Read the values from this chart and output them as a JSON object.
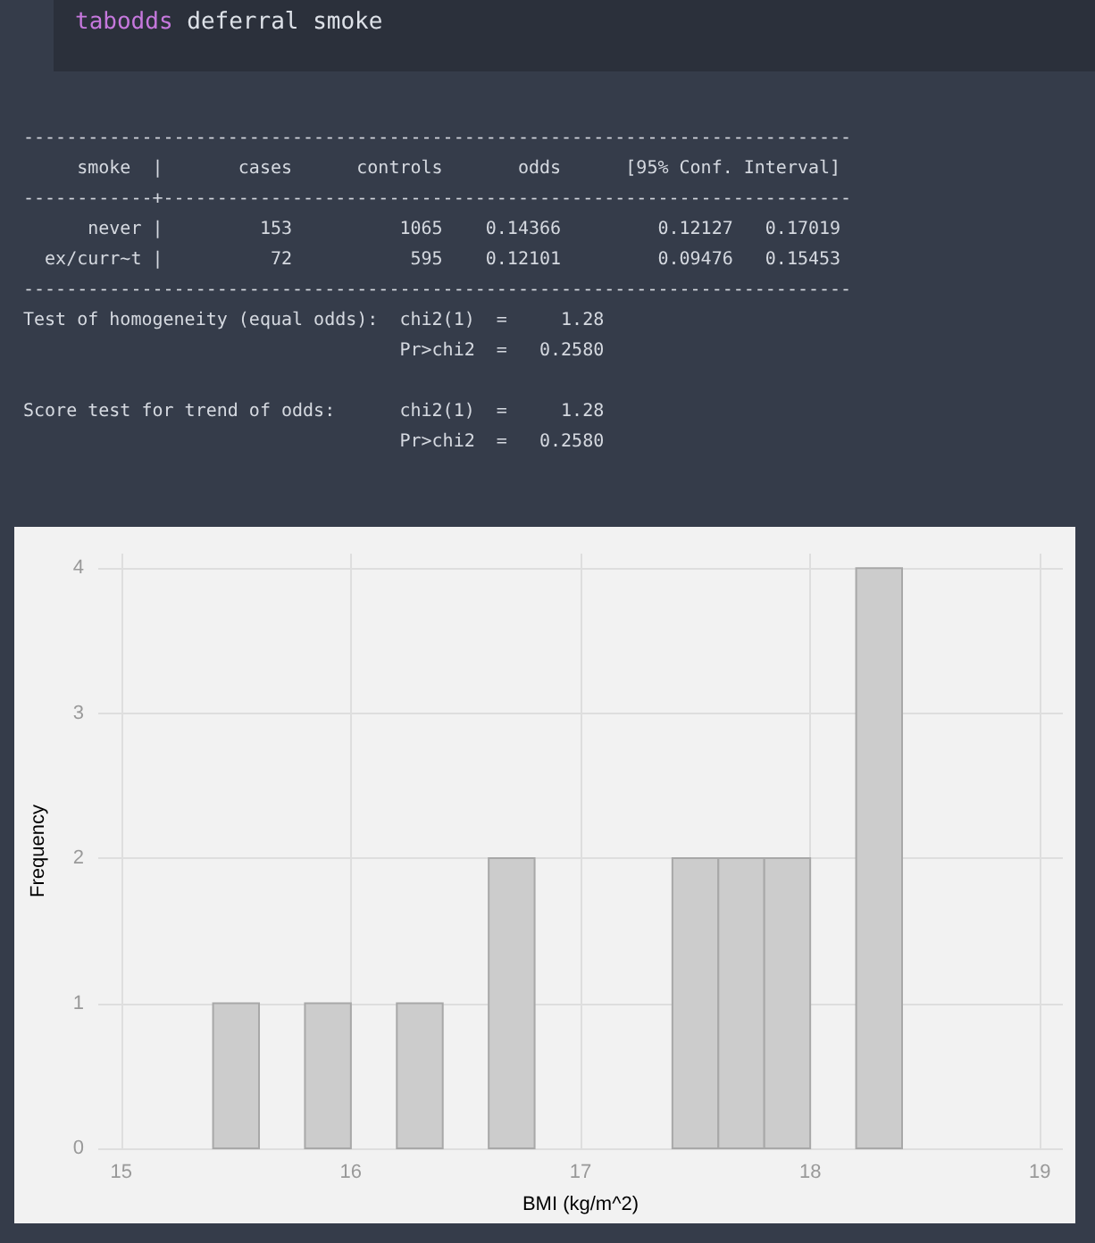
{
  "chart_data": [
    {
      "type": "other",
      "title": "tabodds deferral smoke",
      "annotations": [
        "-----------------------------------------------------------------------------\n     smoke  |       cases      controls       odds      [95% Conf. Interval]\n------------+----------------------------------------------------------------\n      never |         153          1065    0.14366         0.12127   0.17019\n  ex/curr~t |          72           595    0.12101         0.09476   0.15453\n-----------------------------------------------------------------------------\nTest of homogeneity (equal odds):  chi2(1)  =     1.28\n                                   Pr>chi2  =   0.2580",
        "Score test for trend of odds:      chi2(1)  =     1.28\n                                   Pr>chi2  =   0.2580"
      ]
    },
    {
      "type": "histogram",
      "xlabel": "BMI (kg/m^2)",
      "ylabel": "Frequency",
      "color": "#cccccc",
      "bins": [
        15.4,
        15.6,
        15.8,
        16.0,
        16.2,
        16.4,
        16.6,
        16.8,
        17.0,
        17.2,
        17.4,
        17.6,
        17.8,
        18.0,
        18.2,
        18.4
      ],
      "values": [
        1,
        0,
        1,
        0,
        1,
        0,
        2,
        0,
        0,
        0,
        2,
        2,
        2,
        0,
        4
      ],
      "xlim": [
        14.9,
        19.1
      ],
      "xticks": [
        15,
        16,
        17,
        18,
        19
      ],
      "ylim": [
        0,
        4.1
      ],
      "yticks": [
        0,
        1,
        2,
        3,
        4
      ],
      "grid": true
    }
  ]
}
